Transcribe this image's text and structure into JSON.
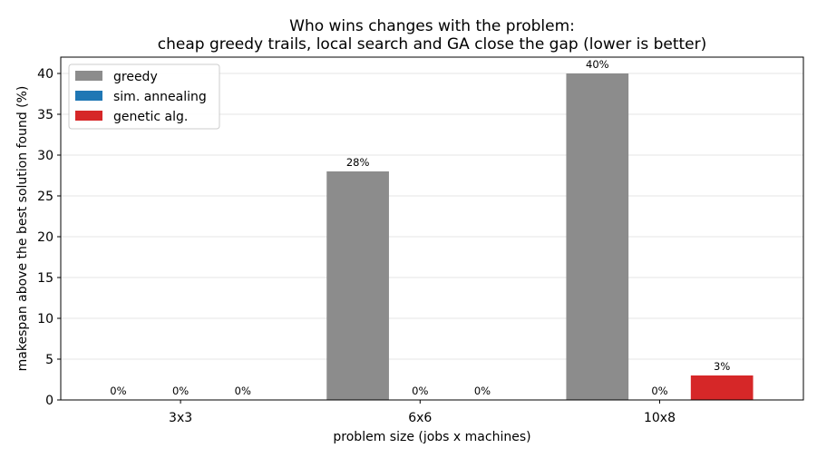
{
  "chart_data": {
    "type": "bar",
    "title": "Who wins changes with the problem:",
    "subtitle": "cheap greedy trails, local search and GA close the gap (lower is better)",
    "xlabel": "problem size (jobs x machines)",
    "ylabel": "makespan above the best solution found (%)",
    "categories": [
      "3x3",
      "6x6",
      "10x8"
    ],
    "series": [
      {
        "name": "greedy",
        "color": "#8c8c8c",
        "values": [
          0,
          28,
          40
        ],
        "labels": [
          "0%",
          "28%",
          "40%"
        ]
      },
      {
        "name": "sim. annealing",
        "color": "#1f77b4",
        "values": [
          0,
          0,
          0
        ],
        "labels": [
          "0%",
          "0%",
          "0%"
        ]
      },
      {
        "name": "genetic alg.",
        "color": "#d62728",
        "values": [
          0,
          0,
          3
        ],
        "labels": [
          "0%",
          "0%",
          "3%"
        ]
      }
    ],
    "ylim": [
      0,
      42
    ],
    "yticks": [
      0,
      5,
      10,
      15,
      20,
      25,
      30,
      35,
      40
    ],
    "grid": "horizontal",
    "legend_position": "top-left"
  }
}
